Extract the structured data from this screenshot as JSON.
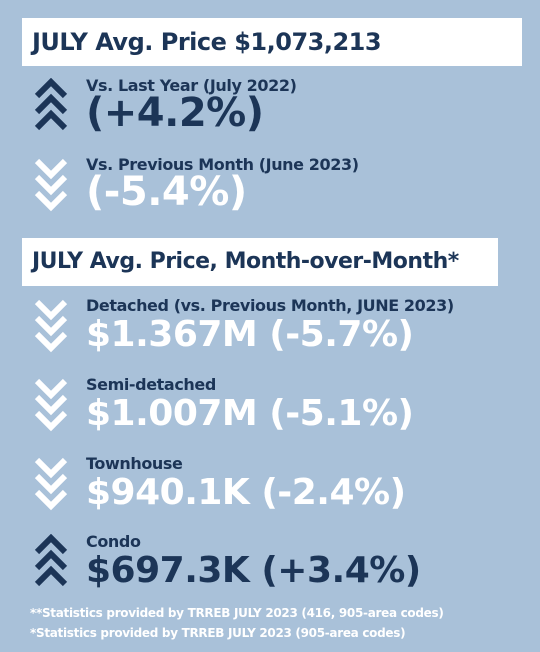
{
  "headline": {
    "title": "JULY Avg. Price $1,073,213",
    "items": [
      {
        "label": "Vs. Last Year (July 2022)",
        "value": "(+4.2%)",
        "direction": "up",
        "icon": "double-chevron-up-icon"
      },
      {
        "label": "Vs. Previous Month (June 2023)",
        "value": "(-5.4%)",
        "direction": "down",
        "icon": "double-chevron-down-icon"
      }
    ]
  },
  "mom": {
    "title": "JULY Avg. Price, Month-over-Month*",
    "items": [
      {
        "label": "Detached (vs. Previous Month, JUNE 2023)",
        "value": "$1.367M (-5.7%)",
        "direction": "down",
        "icon": "double-chevron-down-icon"
      },
      {
        "label": "Semi-detached",
        "value": "$1.007M (-5.1%)",
        "direction": "down",
        "icon": "double-chevron-down-icon"
      },
      {
        "label": "Townhouse",
        "value": "$940.1K (-2.4%)",
        "direction": "down",
        "icon": "double-chevron-down-icon"
      },
      {
        "label": "Condo",
        "value": "$697.3K (+3.4%)",
        "direction": "up",
        "icon": "double-chevron-up-icon"
      }
    ]
  },
  "footnotes": [
    "**Statistics provided by TRREB JULY 2023 (416, 905-area codes)",
    "*Statistics provided by TRREB JULY 2023 (905-area codes)"
  ],
  "colors": {
    "background": "#a9c1d9",
    "navy": "#1c3557",
    "white": "#ffffff"
  }
}
